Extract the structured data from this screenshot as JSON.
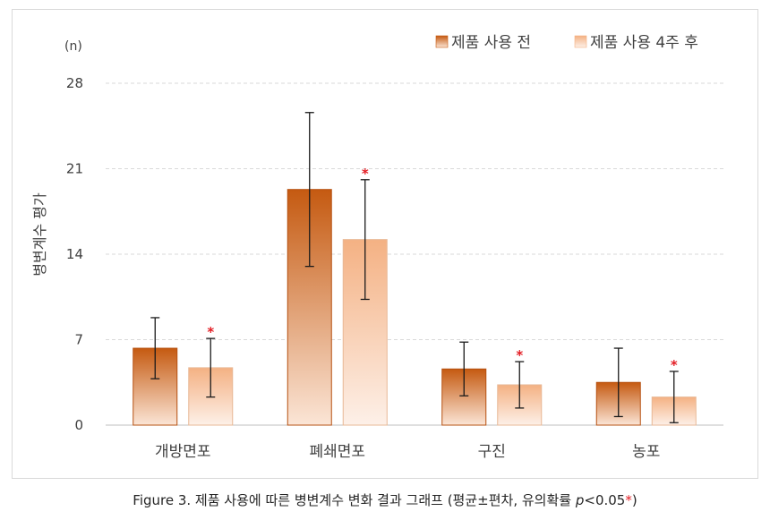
{
  "caption": {
    "prefix": "Figure 3. 제품 사용에 따른 병변계수 변화 결과 그래프 (평균±편차, 유의확률 ",
    "p_symbol": "p",
    "threshold": "<0.05",
    "star": "*",
    "suffix": ")"
  },
  "chart_data": {
    "type": "bar",
    "unit_label": "(n)",
    "ylabel": "병변계수 평가",
    "xlabel": "",
    "ylim": [
      0,
      28
    ],
    "yticks": [
      0,
      7,
      14,
      21,
      28
    ],
    "grid": true,
    "legend_position": "top-right",
    "categories": [
      "개방면포",
      "폐쇄면포",
      "구진",
      "농포"
    ],
    "series": [
      {
        "name": "제품 사용 전",
        "values": [
          6.3,
          19.3,
          4.6,
          3.5
        ],
        "error": [
          2.5,
          6.3,
          2.2,
          2.8
        ],
        "significant": [
          false,
          false,
          false,
          false
        ],
        "color_top": "#c55a11",
        "color_bottom": "#fbe5d6"
      },
      {
        "name": "제품 사용 4주 후",
        "values": [
          4.7,
          15.2,
          3.3,
          2.3
        ],
        "error": [
          2.4,
          4.9,
          1.9,
          2.1
        ],
        "significant": [
          true,
          true,
          true,
          true
        ],
        "color_top": "#f4b183",
        "color_bottom": "#fdf0e8"
      }
    ],
    "significance_marker": "*"
  }
}
